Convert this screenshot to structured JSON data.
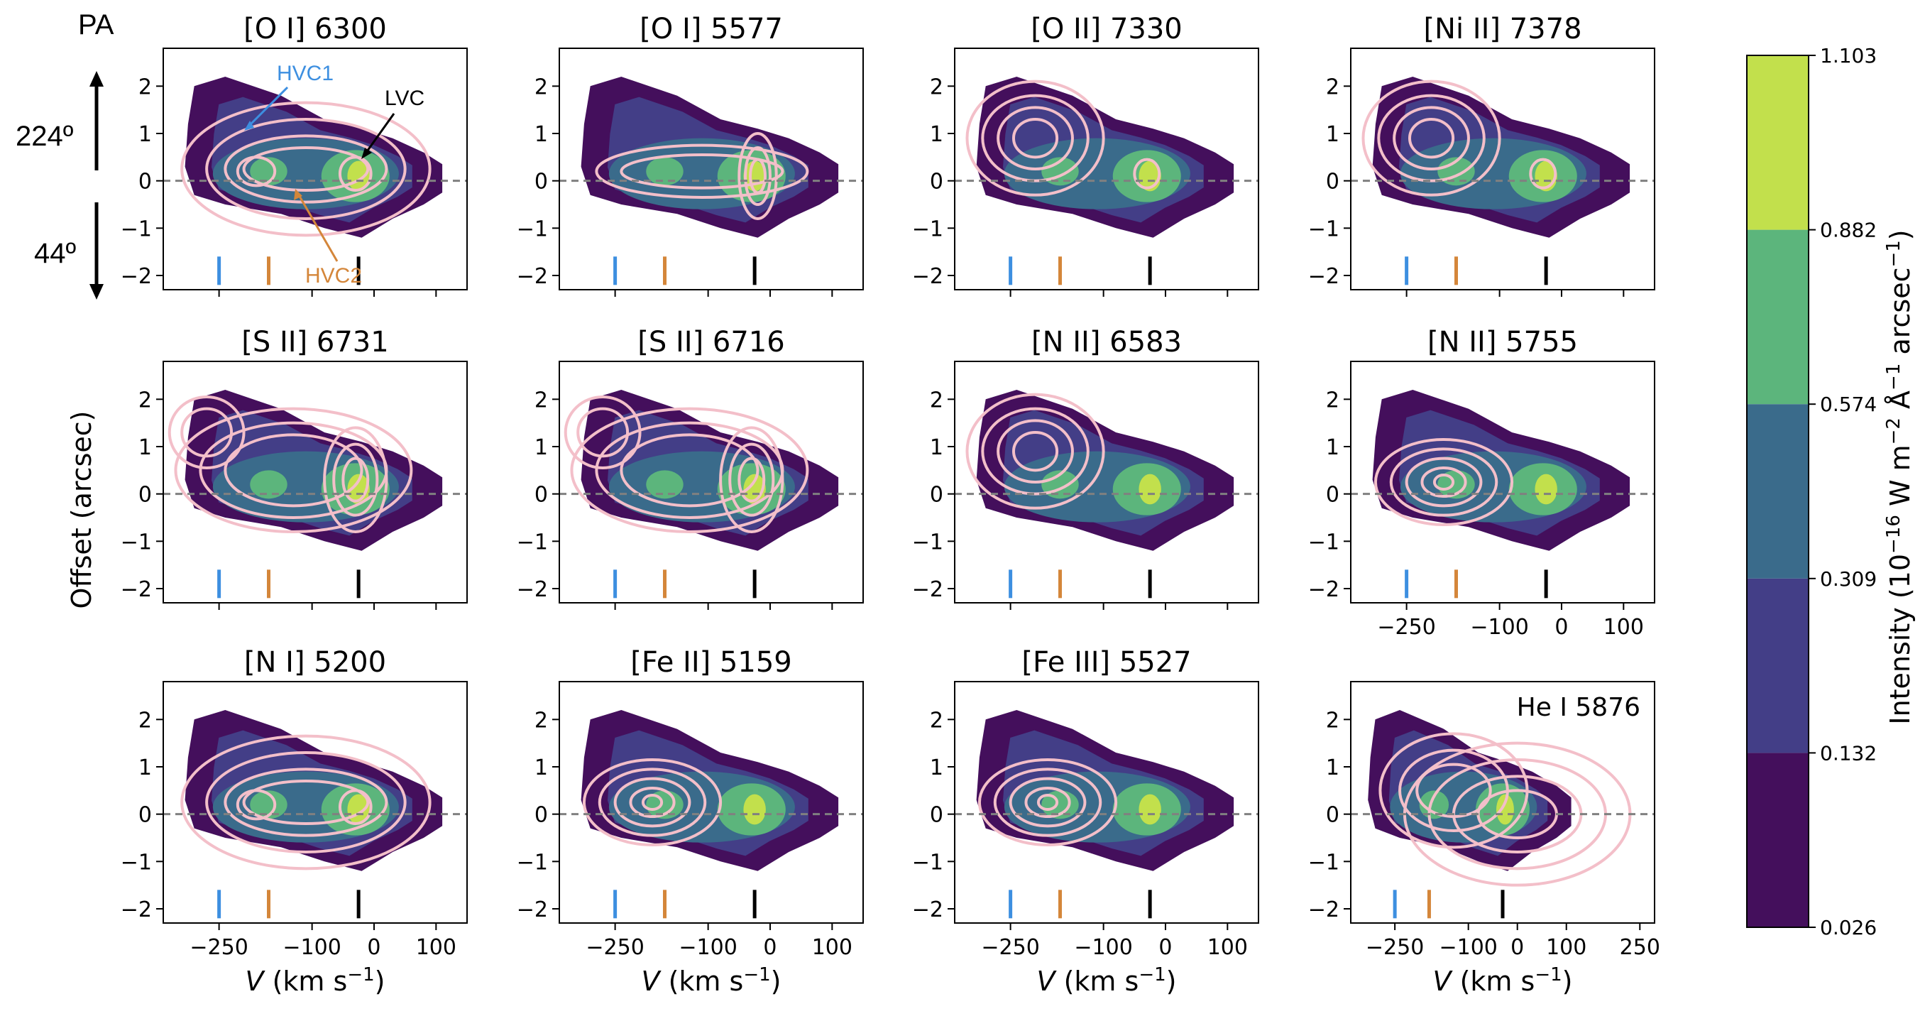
{
  "figure": {
    "pa_label": "PA",
    "pa_top": "224º",
    "pa_bottom": "44º",
    "ylabel": "Offset (arcsec)",
    "xlabel_prefix": "V",
    "xlabel_units": "(km s",
    "xlabel_exp": "−1",
    "xlabel_close": ")",
    "annotations": {
      "hvc1": "HVC1",
      "hvc2": "HVC2",
      "lvc": "LVC"
    },
    "colors": {
      "hvc1": "#3d8fe0",
      "hvc2": "#d4863a",
      "lvc": "#000000",
      "contour": "#f3bfc9",
      "zero_line": "#808080"
    }
  },
  "colorbar": {
    "label_main": "Intensity (10",
    "label_exp1": "−16",
    "label_mid": " W m",
    "label_exp2": "−2",
    "label_mid2": " Å",
    "label_exp3": "−1",
    "label_mid3": " arcsec",
    "label_exp4": "−1",
    "label_close": ")",
    "levels": [
      "0.026",
      "0.132",
      "0.309",
      "0.574",
      "0.882",
      "1.103"
    ],
    "colors": [
      "#440f5c",
      "#433e87",
      "#3a6b8b",
      "#5cb57c",
      "#c2e04c"
    ]
  },
  "chart_data": [
    {
      "type": "contour",
      "title": "[O I] 6300",
      "xlim": [
        -340,
        150
      ],
      "ylim": [
        -2.3,
        2.8
      ],
      "yticks": [
        "2",
        "1",
        "0",
        "−1",
        "−2"
      ],
      "xticks": [
        "−250",
        "−100",
        "0",
        "100"
      ],
      "show_xticklabels": false,
      "markers_kms": [
        -250,
        -170,
        -25
      ],
      "contours": "double-peak"
    },
    {
      "type": "contour",
      "title": "[O I] 5577",
      "xlim": [
        -340,
        150
      ],
      "ylim": [
        -2.3,
        2.8
      ],
      "yticks": [
        "2",
        "1",
        "0",
        "−1",
        "−2"
      ],
      "xticks": [
        "−250",
        "−100",
        "0",
        "100"
      ],
      "show_xticklabels": false,
      "markers_kms": [
        -250,
        -170,
        -25
      ],
      "contours": "lvc-strong"
    },
    {
      "type": "contour",
      "title": "[O II] 7330",
      "xlim": [
        -340,
        150
      ],
      "ylim": [
        -2.3,
        2.8
      ],
      "yticks": [
        "2",
        "1",
        "0",
        "−1",
        "−2"
      ],
      "xticks": [
        "−250",
        "−100",
        "0",
        "100"
      ],
      "show_xticklabels": false,
      "markers_kms": [
        -250,
        -170,
        -25
      ],
      "contours": "hvc"
    },
    {
      "type": "contour",
      "title": "[Ni II] 7378",
      "xlim": [
        -340,
        150
      ],
      "ylim": [
        -2.3,
        2.8
      ],
      "yticks": [
        "2",
        "1",
        "0",
        "−1",
        "−2"
      ],
      "xticks": [
        "−250",
        "−100",
        "0",
        "100"
      ],
      "show_xticklabels": false,
      "markers_kms": [
        -250,
        -170,
        -25
      ],
      "contours": "hvc"
    },
    {
      "type": "contour",
      "title": "[S II] 6731",
      "xlim": [
        -340,
        150
      ],
      "ylim": [
        -2.3,
        2.8
      ],
      "yticks": [
        "2",
        "1",
        "0",
        "−1",
        "−2"
      ],
      "xticks": [
        "−250",
        "−100",
        "0",
        "100"
      ],
      "show_xticklabels": false,
      "markers_kms": [
        -250,
        -170,
        -25
      ],
      "contours": "sii"
    },
    {
      "type": "contour",
      "title": "[S II] 6716",
      "xlim": [
        -340,
        150
      ],
      "ylim": [
        -2.3,
        2.8
      ],
      "yticks": [
        "2",
        "1",
        "0",
        "−1",
        "−2"
      ],
      "xticks": [
        "−250",
        "−100",
        "0",
        "100"
      ],
      "show_xticklabels": false,
      "markers_kms": [
        -250,
        -170,
        -25
      ],
      "contours": "sii"
    },
    {
      "type": "contour",
      "title": "[N II] 6583",
      "xlim": [
        -340,
        150
      ],
      "ylim": [
        -2.3,
        2.8
      ],
      "yticks": [
        "2",
        "1",
        "0",
        "−1",
        "−2"
      ],
      "xticks": [
        "−250",
        "−100",
        "0",
        "100"
      ],
      "show_xticklabels": false,
      "markers_kms": [
        -250,
        -170,
        -25
      ],
      "contours": "hvc1-only"
    },
    {
      "type": "contour",
      "title": "[N II] 5755",
      "xlim": [
        -340,
        150
      ],
      "ylim": [
        -2.3,
        2.8
      ],
      "yticks": [
        "2",
        "1",
        "0",
        "−1",
        "−2"
      ],
      "xticks": [
        "−250",
        "−100",
        "0",
        "100"
      ],
      "show_xticklabels": true,
      "markers_kms": [
        -250,
        -170,
        -25
      ],
      "contours": "hvc2"
    },
    {
      "type": "contour",
      "title": "[N I] 5200",
      "xlim": [
        -340,
        150
      ],
      "ylim": [
        -2.3,
        2.8
      ],
      "yticks": [
        "2",
        "1",
        "0",
        "−1",
        "−2"
      ],
      "xticks": [
        "−250",
        "−100",
        "0",
        "100"
      ],
      "show_xticklabels": true,
      "markers_kms": [
        -250,
        -170,
        -25
      ],
      "contours": "broad"
    },
    {
      "type": "contour",
      "title": "[Fe II] 5159",
      "xlim": [
        -340,
        150
      ],
      "ylim": [
        -2.3,
        2.8
      ],
      "yticks": [
        "2",
        "1",
        "0",
        "−1",
        "−2"
      ],
      "xticks": [
        "−250",
        "−100",
        "0",
        "100"
      ],
      "show_xticklabels": true,
      "markers_kms": [
        -250,
        -170,
        -25
      ],
      "contours": "hvc2"
    },
    {
      "type": "contour",
      "title": "[Fe III] 5527",
      "xlim": [
        -340,
        150
      ],
      "ylim": [
        -2.3,
        2.8
      ],
      "yticks": [
        "2",
        "1",
        "0",
        "−1",
        "−2"
      ],
      "xticks": [
        "−250",
        "−100",
        "0",
        "100"
      ],
      "show_xticklabels": true,
      "markers_kms": [
        -250,
        -170,
        -25
      ],
      "contours": "hvc2"
    },
    {
      "type": "contour",
      "title": "He I 5876",
      "xlim": [
        -340,
        280
      ],
      "ylim": [
        -2.3,
        2.8
      ],
      "yticks": [
        "2",
        "1",
        "0",
        "−1",
        "−2"
      ],
      "xticks": [
        "−250",
        "−100",
        "0",
        "100",
        "250"
      ],
      "show_xticklabels": true,
      "markers_kms": [
        -250,
        -180,
        -30
      ],
      "contours": "hei",
      "title_inside": true
    }
  ]
}
